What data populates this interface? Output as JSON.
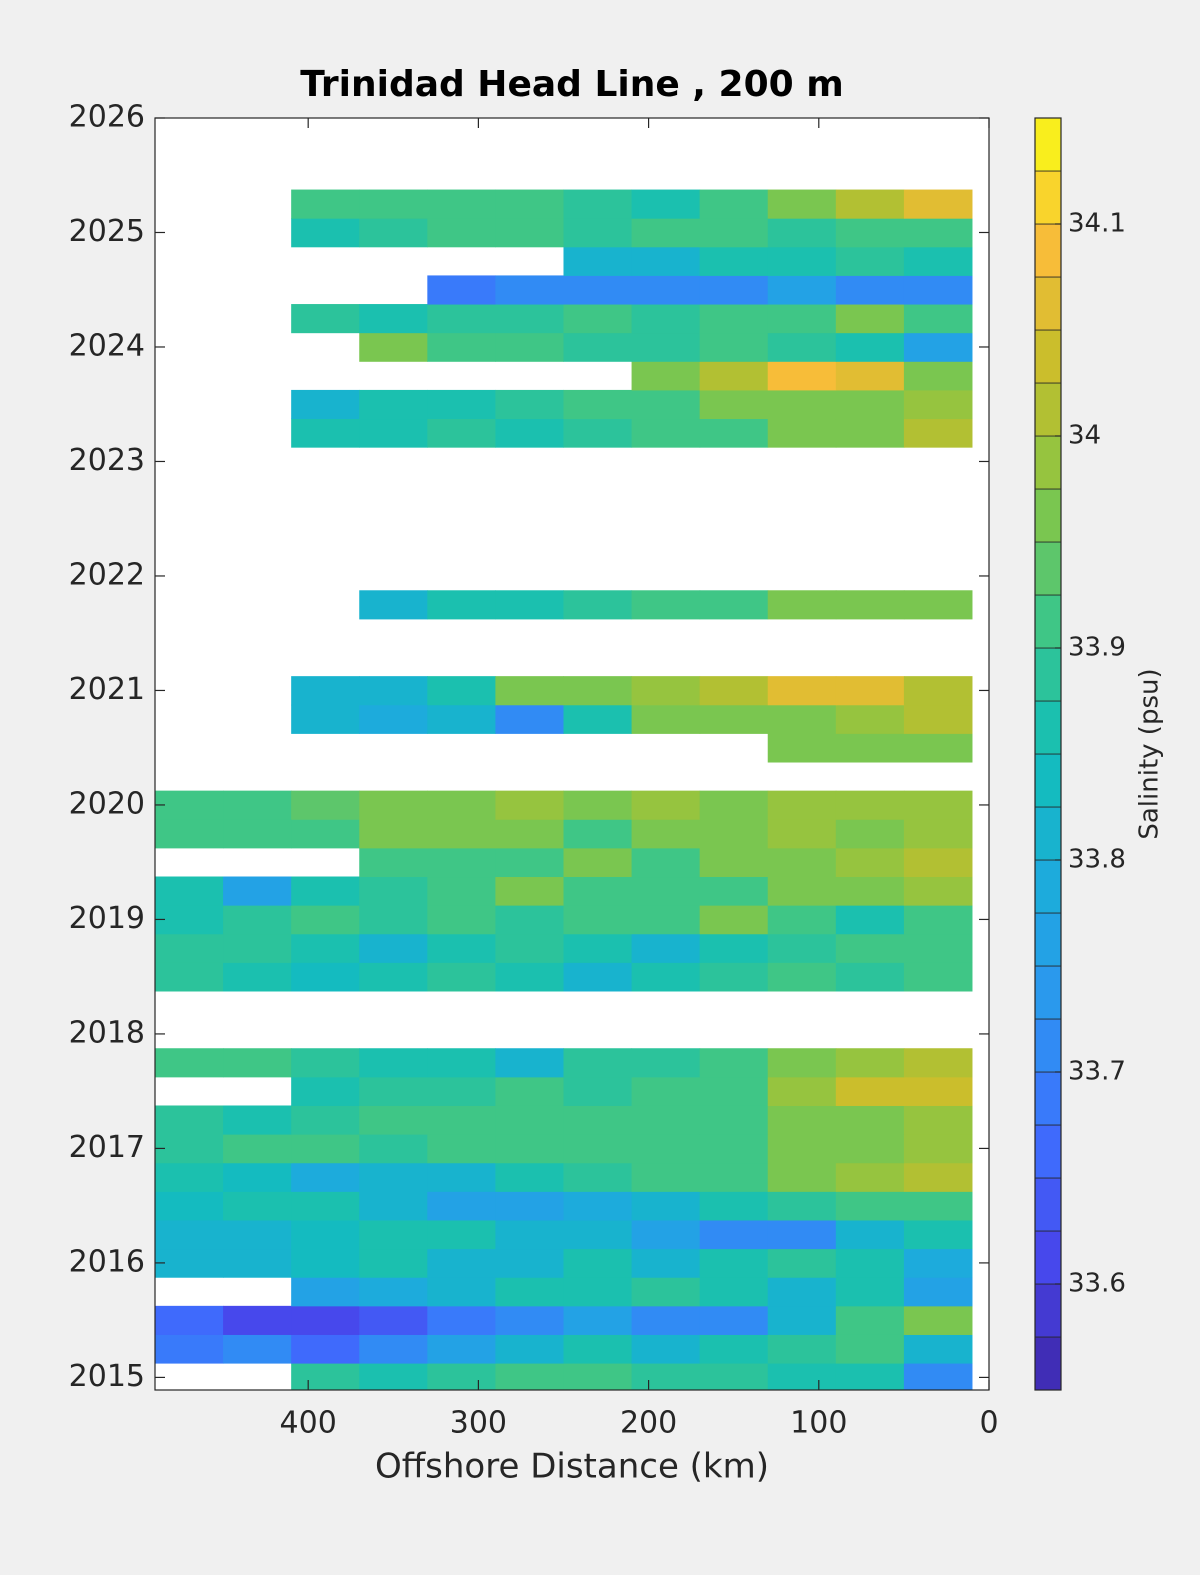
{
  "chart_data": {
    "type": "contour",
    "title": "Trinidad Head Line , 200 m",
    "xlabel": "Offshore Distance (km)",
    "colorbar_label": "Salinity (psu)",
    "xlim": [
      490,
      0
    ],
    "xticks": [
      400,
      300,
      200,
      100,
      0
    ],
    "ylim": [
      2014.89,
      2026
    ],
    "yticks": [
      2015,
      2016,
      2017,
      2018,
      2019,
      2020,
      2021,
      2022,
      2023,
      2024,
      2025,
      2026
    ],
    "clim": [
      33.55,
      34.15
    ],
    "cticks": [
      33.6,
      33.7,
      33.8,
      33.9,
      34,
      34.1
    ],
    "level_step": 0.025,
    "colormap": [
      "#3e26a8",
      "#4746eb",
      "#3e6ffe",
      "#2c96f0",
      "#1cacdb",
      "#12bfb9",
      "#3cc689",
      "#83c648",
      "#c5be2a",
      "#f9bd3a",
      "#f9fb15"
    ],
    "x": [
      470,
      430,
      390,
      350,
      310,
      270,
      230,
      190,
      150,
      110,
      70,
      30
    ],
    "y": [
      2015.0,
      2015.25,
      2015.5,
      2015.75,
      2016.0,
      2016.25,
      2016.5,
      2016.75,
      2017.0,
      2017.25,
      2017.5,
      2017.75,
      2018.5,
      2018.75,
      2019.0,
      2019.25,
      2019.5,
      2019.75,
      2020.0,
      2020.5,
      2020.75,
      2021.0,
      2021.75,
      2023.25,
      2023.5,
      2023.75,
      2024.0,
      2024.25,
      2024.5,
      2024.75,
      2025.0,
      2025.25
    ],
    "z": [
      [
        null,
        null,
        33.88,
        33.85,
        33.88,
        33.9,
        33.9,
        33.88,
        33.88,
        33.87,
        33.85,
        33.72
      ],
      [
        33.68,
        33.7,
        33.65,
        33.7,
        33.75,
        33.82,
        33.85,
        33.82,
        33.85,
        33.88,
        33.9,
        33.8
      ],
      [
        33.66,
        33.62,
        33.6,
        33.63,
        33.68,
        33.72,
        33.75,
        33.72,
        33.7,
        33.8,
        33.9,
        33.95
      ],
      [
        null,
        null,
        33.75,
        33.78,
        33.8,
        33.85,
        33.85,
        33.88,
        33.85,
        33.82,
        33.85,
        33.75
      ],
      [
        33.8,
        33.82,
        33.83,
        33.85,
        33.82,
        33.82,
        33.85,
        33.82,
        33.85,
        33.88,
        33.85,
        33.78
      ],
      [
        33.82,
        33.8,
        33.83,
        33.85,
        33.85,
        33.82,
        33.8,
        33.75,
        33.7,
        33.72,
        33.8,
        33.85
      ],
      [
        33.83,
        33.85,
        33.85,
        33.82,
        33.75,
        33.75,
        33.78,
        33.8,
        33.85,
        33.88,
        33.9,
        33.92
      ],
      [
        33.85,
        33.83,
        33.78,
        33.8,
        33.8,
        33.85,
        33.88,
        33.9,
        33.92,
        33.95,
        33.98,
        34.0
      ],
      [
        33.88,
        33.9,
        33.9,
        33.88,
        33.9,
        33.9,
        33.92,
        33.9,
        33.9,
        33.95,
        33.97,
        33.98
      ],
      [
        33.88,
        33.85,
        33.88,
        33.9,
        33.9,
        33.92,
        33.9,
        33.9,
        33.92,
        33.95,
        33.97,
        33.98
      ],
      [
        null,
        null,
        33.85,
        33.88,
        33.88,
        33.9,
        33.88,
        33.9,
        33.92,
        33.98,
        34.03,
        34.03
      ],
      [
        33.92,
        33.92,
        33.88,
        33.85,
        33.85,
        33.8,
        33.88,
        33.88,
        33.9,
        33.95,
        33.98,
        34.0
      ],
      [
        33.88,
        33.85,
        33.83,
        33.85,
        33.88,
        33.85,
        33.82,
        33.85,
        33.88,
        33.9,
        33.88,
        33.9
      ],
      [
        33.88,
        33.88,
        33.85,
        33.82,
        33.85,
        33.88,
        33.85,
        33.82,
        33.85,
        33.88,
        33.9,
        33.92
      ],
      [
        33.85,
        33.88,
        33.9,
        33.88,
        33.9,
        33.88,
        33.9,
        33.9,
        33.95,
        33.92,
        33.85,
        33.9
      ],
      [
        33.85,
        33.75,
        33.85,
        33.88,
        33.92,
        33.95,
        33.9,
        33.92,
        33.92,
        33.95,
        33.95,
        33.98
      ],
      [
        null,
        null,
        null,
        33.9,
        33.92,
        33.92,
        33.95,
        33.92,
        33.95,
        33.97,
        33.98,
        34.0
      ],
      [
        33.9,
        33.92,
        33.92,
        33.95,
        33.97,
        33.95,
        33.92,
        33.95,
        33.97,
        33.98,
        33.97,
        33.98
      ],
      [
        33.92,
        33.92,
        33.93,
        33.95,
        33.97,
        33.98,
        33.97,
        33.98,
        33.97,
        33.98,
        33.98,
        33.98
      ],
      [
        null,
        null,
        null,
        null,
        null,
        null,
        null,
        null,
        null,
        33.95,
        33.95,
        33.95
      ],
      [
        null,
        null,
        33.82,
        33.78,
        33.8,
        33.7,
        33.85,
        33.95,
        33.95,
        33.97,
        33.98,
        34.0
      ],
      [
        null,
        null,
        33.82,
        33.8,
        33.85,
        33.95,
        33.97,
        33.98,
        34.02,
        34.05,
        34.05,
        34.02
      ],
      [
        null,
        null,
        null,
        33.82,
        33.85,
        33.85,
        33.88,
        33.9,
        33.92,
        33.95,
        33.95,
        33.95
      ],
      [
        null,
        null,
        33.85,
        33.85,
        33.88,
        33.85,
        33.88,
        33.9,
        33.92,
        33.95,
        33.97,
        34.0
      ],
      [
        null,
        null,
        33.82,
        33.85,
        33.85,
        33.88,
        33.9,
        33.92,
        33.95,
        33.95,
        33.95,
        33.98
      ],
      [
        null,
        null,
        null,
        null,
        null,
        null,
        null,
        33.97,
        34.02,
        34.08,
        34.07,
        33.95
      ],
      [
        null,
        null,
        null,
        33.95,
        33.92,
        33.9,
        33.88,
        33.88,
        33.9,
        33.88,
        33.85,
        33.75
      ],
      [
        null,
        null,
        33.88,
        33.85,
        33.88,
        33.88,
        33.9,
        33.88,
        33.9,
        33.92,
        33.95,
        33.9
      ],
      [
        null,
        null,
        null,
        null,
        33.68,
        33.7,
        33.72,
        33.72,
        33.72,
        33.75,
        33.72,
        33.72
      ],
      [
        null,
        null,
        null,
        null,
        null,
        null,
        33.8,
        33.82,
        33.85,
        33.85,
        33.88,
        33.85
      ],
      [
        null,
        null,
        33.85,
        33.88,
        33.9,
        33.9,
        33.88,
        33.9,
        33.9,
        33.88,
        33.9,
        33.9
      ],
      [
        null,
        null,
        33.9,
        33.92,
        33.92,
        33.9,
        33.88,
        33.85,
        33.9,
        33.95,
        34.0,
        34.05
      ]
    ]
  }
}
